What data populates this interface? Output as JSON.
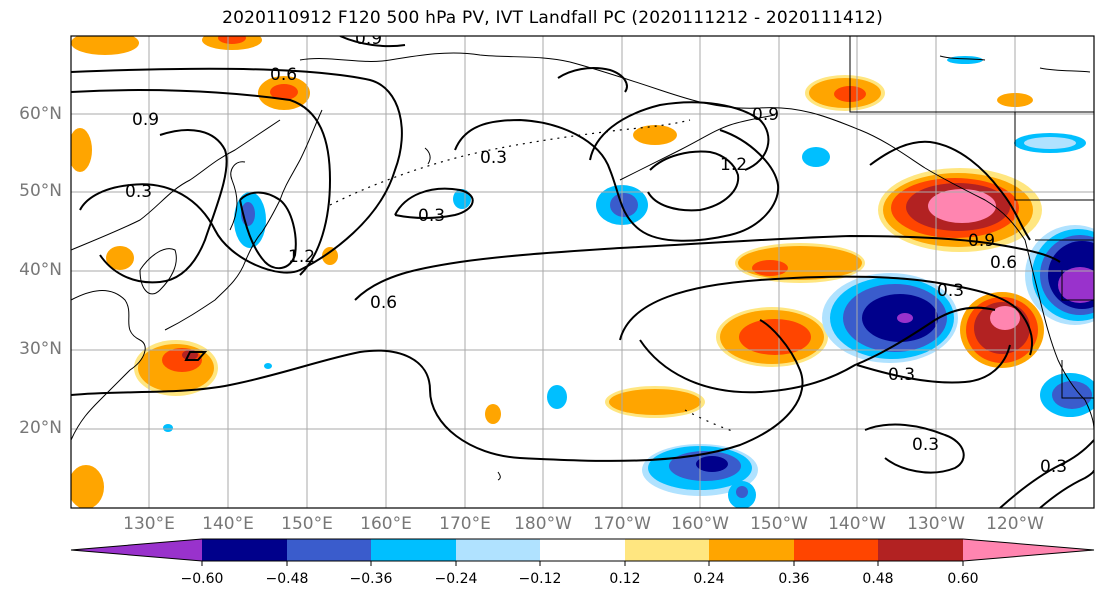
{
  "title": "2020110912 F120 500 hPa PV, IVT Landfall PC (2020111212 - 2020111412)",
  "lat_labels": [
    "60°N",
    "50°N",
    "40°N",
    "30°N",
    "20°N"
  ],
  "lon_labels": [
    "130°E",
    "140°E",
    "150°E",
    "160°E",
    "170°E",
    "180°W",
    "170°W",
    "160°W",
    "150°W",
    "140°W",
    "130°W",
    "120°W"
  ],
  "colorbar": {
    "ticks": [
      "−0.60",
      "−0.48",
      "−0.36",
      "−0.24",
      "−0.12",
      "0.12",
      "0.24",
      "0.36",
      "0.48",
      "0.60"
    ],
    "colors": [
      "#9932cc",
      "#00008b",
      "#3a5ccc",
      "#00bfff",
      "#b0e2ff",
      "#ffffff",
      "#ffe680",
      "#ffa500",
      "#ff4500",
      "#b22222",
      "#ff85b0"
    ],
    "extend": "both"
  },
  "contour_labels": [
    "0.3",
    "0.3",
    "0.3",
    "0.3",
    "0.3",
    "0.3",
    "0.3",
    "0.6",
    "0.6",
    "0.6",
    "0.9",
    "0.9",
    "0.9",
    "0.9",
    "1.2",
    "1.2"
  ],
  "colors": {
    "gridline": "#aaaaaa",
    "coastline": "#000000",
    "axis_label": "#777777"
  }
}
